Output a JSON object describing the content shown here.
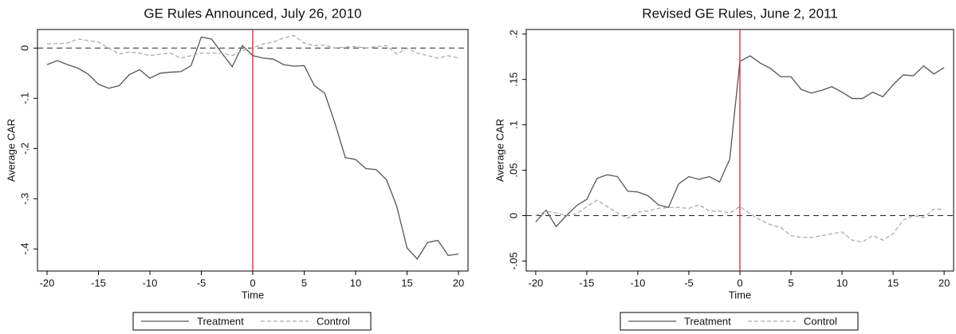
{
  "chart_data": [
    {
      "type": "line",
      "title": "GE Rules Announced, July 26, 2010",
      "xlabel": "Time",
      "ylabel": "Average CAR",
      "x": [
        -20,
        -19,
        -18,
        -17,
        -16,
        -15,
        -14,
        -13,
        -12,
        -11,
        -10,
        -9,
        -8,
        -7,
        -6,
        -5,
        -4,
        -3,
        -2,
        -1,
        0,
        1,
        2,
        3,
        4,
        5,
        6,
        7,
        8,
        9,
        10,
        11,
        12,
        13,
        14,
        15,
        16,
        17,
        18,
        19,
        20
      ],
      "series": [
        {
          "name": "Treatment",
          "color": "#555555",
          "dash": false,
          "values": [
            -0.033,
            -0.025,
            -0.033,
            -0.04,
            -0.052,
            -0.072,
            -0.08,
            -0.075,
            -0.053,
            -0.043,
            -0.06,
            -0.05,
            -0.048,
            -0.047,
            -0.035,
            0.022,
            0.018,
            -0.01,
            -0.037,
            0.005,
            -0.015,
            -0.02,
            -0.022,
            -0.033,
            -0.036,
            -0.035,
            -0.075,
            -0.09,
            -0.15,
            -0.218,
            -0.222,
            -0.24,
            -0.242,
            -0.262,
            -0.315,
            -0.398,
            -0.42,
            -0.387,
            -0.383,
            -0.413,
            -0.41
          ]
        },
        {
          "name": "Control",
          "color": "#aaaaaa",
          "dash": true,
          "values": [
            0.008,
            0.009,
            0.01,
            0.018,
            0.015,
            0.012,
            0.0,
            -0.012,
            -0.008,
            -0.01,
            -0.015,
            -0.012,
            -0.01,
            -0.02,
            -0.015,
            -0.01,
            -0.01,
            -0.01,
            -0.015,
            -0.005,
            0.0,
            0.008,
            0.012,
            0.02,
            0.025,
            0.01,
            0.005,
            0.006,
            0.0,
            0.002,
            0.003,
            0.0,
            0.003,
            0.005,
            -0.012,
            0.0,
            -0.01,
            -0.015,
            -0.02,
            -0.015,
            -0.02
          ]
        }
      ],
      "xlim": [
        -20.93,
        20.93
      ],
      "xticks": [
        -20,
        -15,
        -10,
        -5,
        0,
        5,
        10,
        15,
        20
      ],
      "ylim": [
        -0.444,
        0.037
      ],
      "yticks": [
        {
          "value": -0.4,
          "label": "-.4"
        },
        {
          "value": -0.3,
          "label": "-.3"
        },
        {
          "value": -0.2,
          "label": "-.2"
        },
        {
          "value": -0.1,
          "label": "-.1"
        },
        0
      ],
      "vline": 0,
      "hline": 0
    },
    {
      "type": "line",
      "title": "Revised GE Rules, June 2, 2011",
      "xlabel": "Time",
      "ylabel": "Average CAR",
      "x": [
        -20,
        -19,
        -18,
        -17,
        -16,
        -15,
        -14,
        -13,
        -12,
        -11,
        -10,
        -9,
        -8,
        -7,
        -6,
        -5,
        -4,
        -3,
        -2,
        -1,
        0,
        1,
        2,
        3,
        4,
        5,
        6,
        7,
        8,
        9,
        10,
        11,
        12,
        13,
        14,
        15,
        16,
        17,
        18,
        19,
        20
      ],
      "series": [
        {
          "name": "Treatment",
          "color": "#555555",
          "dash": false,
          "values": [
            -0.007,
            0.006,
            -0.012,
            0.0,
            0.011,
            0.018,
            0.041,
            0.045,
            0.043,
            0.027,
            0.026,
            0.022,
            0.012,
            0.009,
            0.035,
            0.043,
            0.04,
            0.043,
            0.037,
            0.062,
            0.17,
            0.176,
            0.168,
            0.162,
            0.153,
            0.153,
            0.139,
            0.135,
            0.138,
            0.142,
            0.136,
            0.129,
            0.129,
            0.136,
            0.131,
            0.144,
            0.155,
            0.154,
            0.165,
            0.156,
            0.163
          ]
        },
        {
          "name": "Control",
          "color": "#aaaaaa",
          "dash": true,
          "values": [
            0.0,
            0.005,
            0.003,
            0.0,
            0.002,
            0.01,
            0.017,
            0.01,
            0.003,
            -0.003,
            0.004,
            0.005,
            0.008,
            0.009,
            0.009,
            0.008,
            0.012,
            0.005,
            0.005,
            0.003,
            0.01,
            0.002,
            -0.005,
            -0.01,
            -0.013,
            -0.022,
            -0.024,
            -0.024,
            -0.022,
            -0.02,
            -0.018,
            -0.027,
            -0.029,
            -0.022,
            -0.027,
            -0.02,
            -0.005,
            0.0,
            -0.002,
            0.007,
            0.007
          ]
        }
      ],
      "xlim": [
        -20.93,
        20.93
      ],
      "xticks": [
        -20,
        -15,
        -10,
        -5,
        0,
        5,
        10,
        15,
        20
      ],
      "ylim": [
        -0.061,
        0.205
      ],
      "yticks": [
        {
          "value": -0.05,
          "label": "-.05"
        },
        0,
        {
          "value": 0.05,
          "label": ".05"
        },
        {
          "value": 0.1,
          "label": ".1"
        },
        {
          "value": 0.15,
          "label": ".15"
        },
        {
          "value": 0.2,
          "label": ".2"
        }
      ],
      "vline": 0,
      "hline": 0
    }
  ]
}
